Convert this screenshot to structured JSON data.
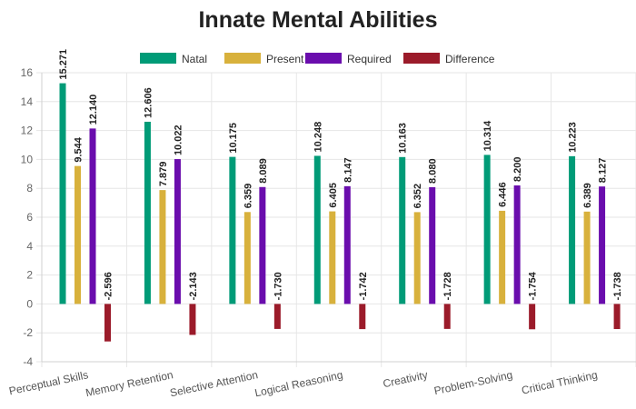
{
  "chart_data": {
    "type": "bar",
    "title": "Innate Mental Abilities",
    "xlabel": "",
    "ylabel": "",
    "ylim": [
      -4,
      16
    ],
    "yticks": [
      -4,
      -2,
      0,
      2,
      4,
      6,
      8,
      10,
      12,
      14,
      16
    ],
    "grid": true,
    "legend_position": "top",
    "categories": [
      "Perceptual Skills",
      "Memory Retention",
      "Selective Attention",
      "Logical Reasoning",
      "Creativity",
      "Problem-Solving",
      "Critical Thinking"
    ],
    "series": [
      {
        "name": "Natal",
        "color": "#009b77",
        "values": [
          15.271,
          12.606,
          10.175,
          10.248,
          10.163,
          10.314,
          10.223
        ],
        "labels": [
          "15.271",
          "12.606",
          "10.175",
          "10.248",
          "10.163",
          "10.314",
          "10.223"
        ]
      },
      {
        "name": "Present",
        "color": "#d8b13c",
        "values": [
          9.544,
          7.879,
          6.359,
          6.405,
          6.352,
          6.446,
          6.389
        ],
        "labels": [
          "9.544",
          "7.879",
          "6.359",
          "6.405",
          "6.352",
          "6.446",
          "6.389"
        ]
      },
      {
        "name": "Required",
        "color": "#6a0dad",
        "values": [
          12.14,
          10.022,
          8.089,
          8.147,
          8.08,
          8.2,
          8.127
        ],
        "labels": [
          "12.140",
          "10.022",
          "8.089",
          "8.147",
          "8.080",
          "8.200",
          "8.127"
        ]
      },
      {
        "name": "Difference",
        "color": "#9b1b2a",
        "values": [
          -2.596,
          -2.143,
          -1.73,
          -1.742,
          -1.728,
          -1.754,
          -1.738
        ],
        "labels": [
          "-2.596",
          "-2.143",
          "-1.730",
          "-1.742",
          "-1.728",
          "-1.754",
          "-1.738"
        ]
      }
    ]
  }
}
